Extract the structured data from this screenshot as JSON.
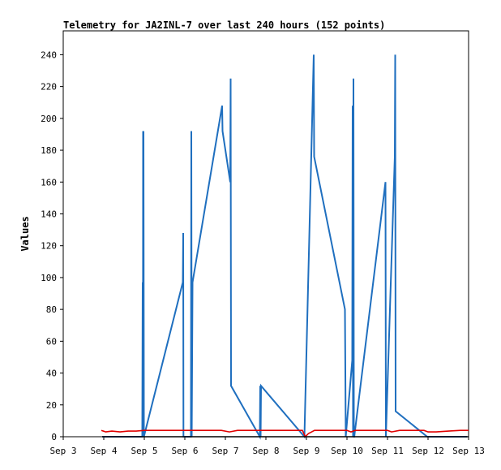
{
  "chart_data": {
    "type": "line",
    "title": "Telemetry for JA2INL-7 over last 240 hours (152 points)",
    "xlabel": "",
    "ylabel": "Values",
    "xlim": [
      0,
      10
    ],
    "ylim": [
      0,
      255
    ],
    "x_tick_values": [
      0,
      1,
      2,
      3,
      4,
      5,
      6,
      7,
      8,
      9,
      10
    ],
    "x_tick_labels": [
      "Sep 3",
      "Sep 4",
      "Sep 5",
      "Sep 6",
      "Sep 7",
      "Sep 8",
      "Sep 9",
      "Sep 10",
      "Sep 11",
      "Sep 12",
      "Sep 13"
    ],
    "y_ticks": [
      0,
      20,
      40,
      60,
      80,
      100,
      120,
      140,
      160,
      180,
      200,
      220,
      240
    ],
    "grid": false,
    "legend": "none",
    "series": [
      {
        "color": "#1f6fbf",
        "points": [
          [
            0.96,
            0
          ],
          [
            1.95,
            0
          ],
          [
            1.96,
            97
          ],
          [
            1.965,
            0
          ],
          [
            1.97,
            192
          ],
          [
            1.975,
            0
          ],
          [
            1.98,
            192
          ],
          [
            1.99,
            0
          ],
          [
            2.95,
            97
          ],
          [
            2.96,
            128
          ],
          [
            2.965,
            0
          ],
          [
            3.15,
            0
          ],
          [
            3.16,
            192
          ],
          [
            3.17,
            0
          ],
          [
            3.19,
            97
          ],
          [
            3.92,
            208
          ],
          [
            3.93,
            192
          ],
          [
            4.12,
            160
          ],
          [
            4.13,
            225
          ],
          [
            4.14,
            32
          ],
          [
            4.85,
            0
          ],
          [
            4.86,
            32
          ],
          [
            4.87,
            0
          ],
          [
            4.88,
            32
          ],
          [
            5.95,
            0
          ],
          [
            6.18,
            240
          ],
          [
            6.19,
            176
          ],
          [
            6.95,
            80
          ],
          [
            6.96,
            40
          ],
          [
            6.97,
            0
          ],
          [
            7.13,
            48
          ],
          [
            7.14,
            208
          ],
          [
            7.15,
            0
          ],
          [
            7.16,
            225
          ],
          [
            7.17,
            0
          ],
          [
            7.18,
            0
          ],
          [
            7.95,
            160
          ],
          [
            7.96,
            0
          ],
          [
            8.18,
            176
          ],
          [
            8.19,
            240
          ],
          [
            8.2,
            16
          ],
          [
            8.98,
            0
          ],
          [
            9.96,
            0
          ]
        ]
      },
      {
        "color": "#e00000",
        "points": [
          [
            0.94,
            4
          ],
          [
            1.05,
            3
          ],
          [
            1.2,
            3.5
          ],
          [
            1.4,
            3
          ],
          [
            1.6,
            3.5
          ],
          [
            1.8,
            3.5
          ],
          [
            2.0,
            4
          ],
          [
            2.5,
            4
          ],
          [
            3.0,
            4
          ],
          [
            3.5,
            4
          ],
          [
            3.9,
            4
          ],
          [
            4.1,
            3
          ],
          [
            4.3,
            4
          ],
          [
            5.0,
            4
          ],
          [
            5.5,
            4
          ],
          [
            5.9,
            4
          ],
          [
            5.97,
            0
          ],
          [
            6.05,
            2
          ],
          [
            6.2,
            4
          ],
          [
            6.6,
            4
          ],
          [
            7.0,
            4
          ],
          [
            7.1,
            3
          ],
          [
            7.2,
            4
          ],
          [
            7.6,
            4
          ],
          [
            8.0,
            4
          ],
          [
            8.1,
            3
          ],
          [
            8.3,
            4
          ],
          [
            8.9,
            4
          ],
          [
            9.0,
            3
          ],
          [
            9.2,
            3
          ],
          [
            9.5,
            3.5
          ],
          [
            9.8,
            4
          ],
          [
            10.0,
            4
          ]
        ]
      },
      {
        "color": "#000000",
        "points": [
          [
            0.96,
            0
          ],
          [
            10.0,
            0
          ]
        ]
      }
    ]
  }
}
